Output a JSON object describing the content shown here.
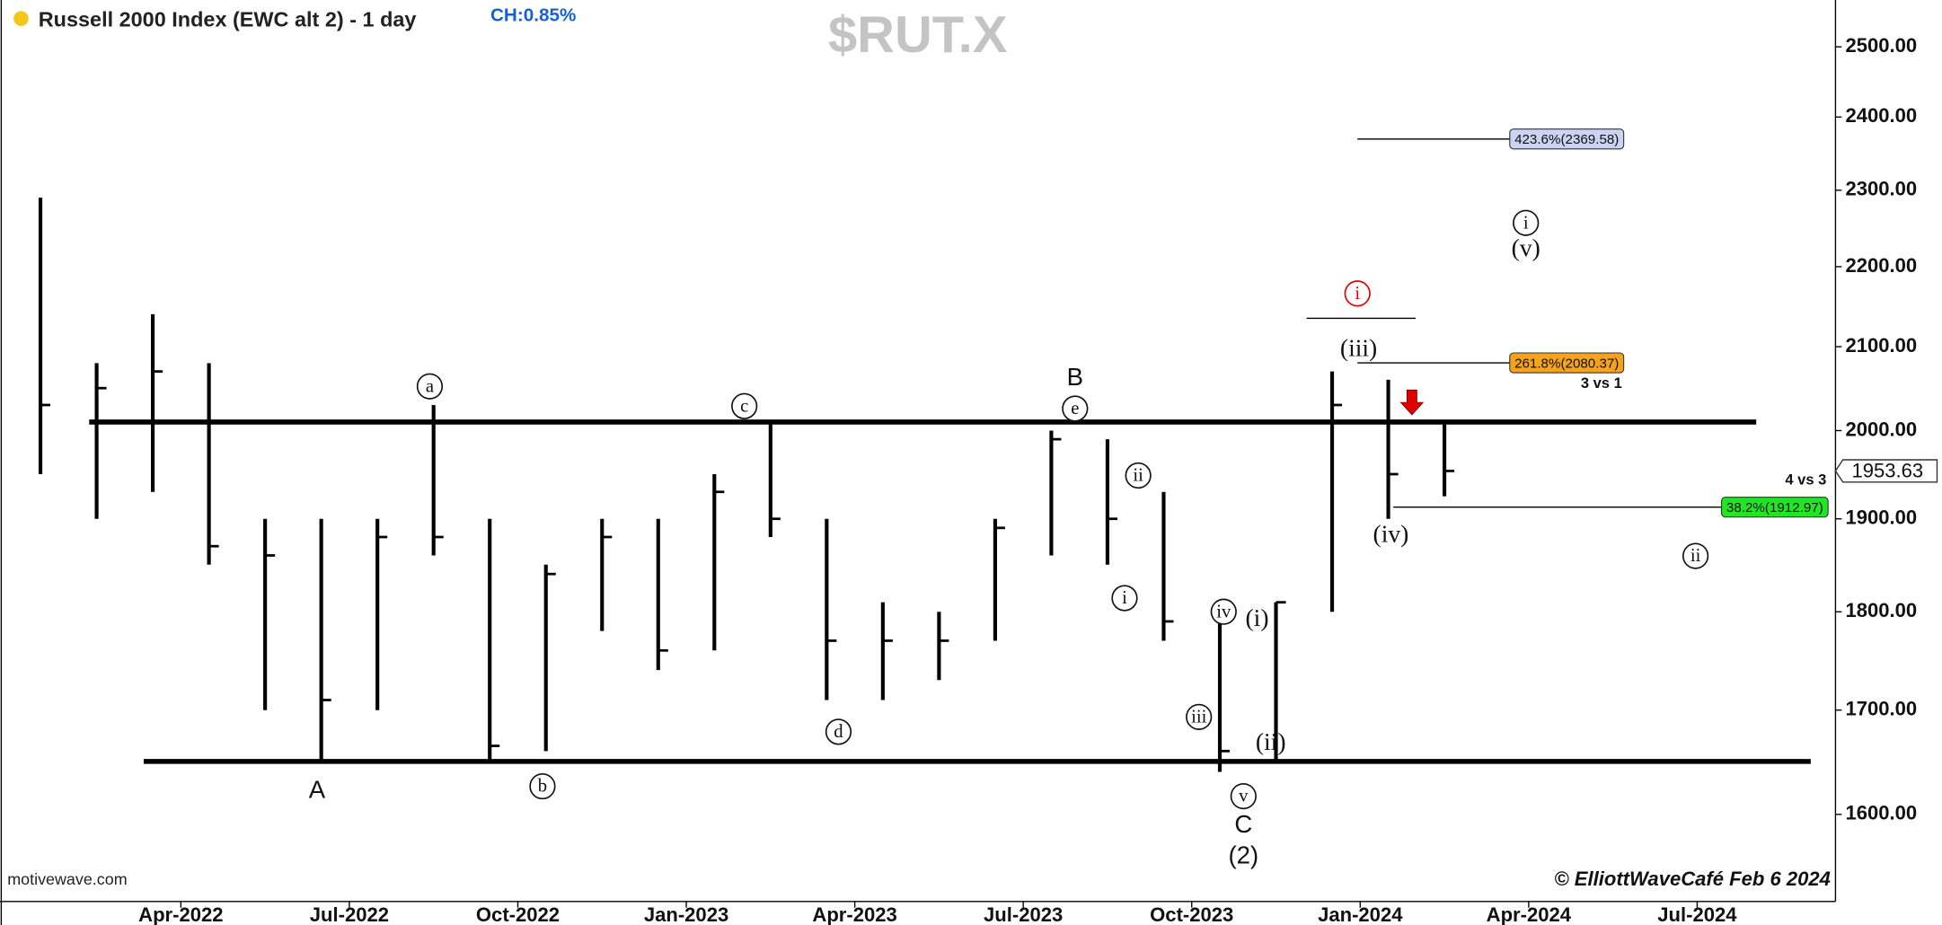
{
  "chart_data": {
    "type": "ohlc",
    "title": "Russell 2000 Index (EWC alt 2) - 1 day",
    "change": "CH:0.85%",
    "symbol": "$RUT.X",
    "source": "motivewave.com",
    "copyright": "© ElliottWaveCafé Feb 6 2024",
    "log_scale": true,
    "color": "#000000",
    "x": [
      "2022-01",
      "2022-02",
      "2022-03",
      "2022-04",
      "2022-05",
      "2022-06",
      "2022-07",
      "2022-08",
      "2022-09",
      "2022-10",
      "2022-11",
      "2022-12",
      "2023-01",
      "2023-02",
      "2023-03",
      "2023-04",
      "2023-05",
      "2023-06",
      "2023-07",
      "2023-08",
      "2023-09",
      "2023-10",
      "2023-11",
      "2023-12",
      "2024-01",
      "2024-02"
    ],
    "high": [
      2290,
      2080,
      2140,
      2080,
      1900,
      1900,
      1900,
      2030,
      1900,
      1850,
      1900,
      1900,
      1950,
      2010,
      1900,
      1810,
      1800,
      1900,
      2000,
      1990,
      1930,
      1790,
      1810,
      2070,
      2060,
      2010
    ],
    "low": [
      1950,
      1900,
      1930,
      1850,
      1700,
      1650,
      1700,
      1860,
      1650,
      1660,
      1780,
      1740,
      1760,
      1880,
      1710,
      1710,
      1730,
      1770,
      1860,
      1850,
      1770,
      1640,
      1650,
      1800,
      1900,
      1925
    ],
    "close": [
      2030,
      2050,
      2070,
      1870,
      1860,
      1710,
      1880,
      1880,
      1665,
      1840,
      1880,
      1760,
      1930,
      1900,
      1770,
      1770,
      1770,
      1890,
      1990,
      1900,
      1790,
      1660,
      1810,
      2030,
      1950,
      1953.63
    ],
    "last_price": 1953.63,
    "xlim": [
      "2022-01",
      "2024-09"
    ],
    "xticks": [
      {
        "value": "2022-04",
        "label": "Apr-2022"
      },
      {
        "value": "2022-07",
        "label": "Jul-2022"
      },
      {
        "value": "2022-10",
        "label": "Oct-2022"
      },
      {
        "value": "2023-01",
        "label": "Jan-2023"
      },
      {
        "value": "2023-04",
        "label": "Apr-2023"
      },
      {
        "value": "2023-07",
        "label": "Jul-2023"
      },
      {
        "value": "2023-10",
        "label": "Oct-2023"
      },
      {
        "value": "2024-01",
        "label": "Jan-2024"
      },
      {
        "value": "2024-04",
        "label": "Apr-2024"
      },
      {
        "value": "2024-07",
        "label": "Jul-2024"
      }
    ],
    "ylim": [
      1521,
      2569
    ],
    "yticks": [
      {
        "value": 1600,
        "label": "1600.00"
      },
      {
        "value": 1700,
        "label": "1700.00"
      },
      {
        "value": 1800,
        "label": "1800.00"
      },
      {
        "value": 1900,
        "label": "1900.00"
      },
      {
        "value": 2000,
        "label": "2000.00"
      },
      {
        "value": 2100,
        "label": "2100.00"
      },
      {
        "value": 2200,
        "label": "2200.00"
      },
      {
        "value": 2300,
        "label": "2300.00"
      },
      {
        "value": 2400,
        "label": "2400.00"
      },
      {
        "value": 2500,
        "label": "2500.00"
      }
    ],
    "hlines": [
      2010,
      1650,
      2135
    ],
    "fib_levels": [
      {
        "value": 2369.58,
        "label": "423.6%(2369.58)",
        "color": "#cdd3f3"
      },
      {
        "value": 2080.37,
        "label": "261.8%(2080.37)",
        "color": "#f7a21b"
      },
      {
        "value": 1912.97,
        "label": "38.2%(1912.97)",
        "color": "#22e622"
      }
    ],
    "notes": [
      "3 vs 1",
      "4 vs 3"
    ],
    "annotations": [
      {
        "text": "a",
        "circled": true
      },
      {
        "text": "A",
        "circled": false
      },
      {
        "text": "b",
        "circled": true
      },
      {
        "text": "c",
        "circled": true
      },
      {
        "text": "d",
        "circled": true
      },
      {
        "text": "B",
        "circled": false
      },
      {
        "text": "e",
        "circled": true
      },
      {
        "text": "i",
        "circled": true
      },
      {
        "text": "ii",
        "circled": true
      },
      {
        "text": "iii",
        "circled": true
      },
      {
        "text": "iv",
        "circled": true
      },
      {
        "text": "v",
        "circled": true
      },
      {
        "text": "C",
        "circled": false
      },
      {
        "text": "(2)",
        "circled": false
      },
      {
        "text": "(i)",
        "circled": false
      },
      {
        "text": "(ii)",
        "circled": false
      },
      {
        "text": "(iii)",
        "circled": false
      },
      {
        "text": "(iv)",
        "circled": false
      },
      {
        "text": "i",
        "circled": true,
        "color": "#e00000"
      },
      {
        "text": "i",
        "circled": true
      },
      {
        "text": "(v)",
        "circled": false
      },
      {
        "text": "ii",
        "circled": true
      }
    ]
  }
}
